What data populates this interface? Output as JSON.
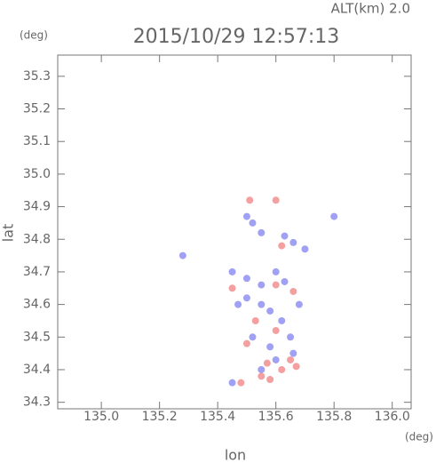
{
  "chart_data": {
    "type": "scatter",
    "title": "2015/10/29 12:57:13",
    "subtitle": "ALT(km) 2.0",
    "x_label": "lon",
    "y_label": "lat",
    "x_unit": "(deg)",
    "y_unit": "(deg)",
    "xlim": [
      134.85,
      136.065
    ],
    "ylim": [
      34.28,
      35.365
    ],
    "xticks": [
      {
        "value": 135.0,
        "label": "135.0"
      },
      135.2,
      135.4,
      135.6,
      135.8,
      {
        "value": 136.0,
        "label": "136.0"
      }
    ],
    "yticks": [
      34.3,
      34.4,
      34.5,
      34.6,
      34.7,
      34.8,
      34.9,
      {
        "value": 35.0,
        "label": "35.0"
      },
      35.1,
      35.2,
      35.3
    ],
    "series": [
      {
        "color": "#8080f0",
        "x": [
          135.5,
          135.52,
          135.55,
          135.63,
          135.66,
          135.7,
          135.8,
          135.45,
          135.5,
          135.55,
          135.6,
          135.63,
          135.5,
          135.55,
          135.58,
          135.62,
          135.65,
          135.52,
          135.58,
          135.6,
          135.66,
          135.55,
          135.45,
          135.28,
          135.47,
          135.68
        ],
        "values": [
          34.87,
          34.85,
          34.82,
          34.81,
          34.79,
          34.77,
          34.87,
          34.7,
          34.68,
          34.66,
          34.7,
          34.67,
          34.62,
          34.6,
          34.58,
          34.55,
          34.5,
          34.5,
          34.47,
          34.43,
          34.45,
          34.4,
          34.36,
          34.75,
          34.6,
          34.6
        ]
      },
      {
        "color": "#f08080",
        "x": [
          135.51,
          135.6,
          135.62,
          135.6,
          135.66,
          135.45,
          135.53,
          135.6,
          135.5,
          135.65,
          135.62,
          135.57,
          135.48,
          135.55,
          135.58,
          135.67
        ],
        "values": [
          34.92,
          34.92,
          34.78,
          34.66,
          34.64,
          34.65,
          34.55,
          34.52,
          34.48,
          34.43,
          34.4,
          34.42,
          34.36,
          34.38,
          34.37,
          34.41
        ]
      }
    ]
  }
}
